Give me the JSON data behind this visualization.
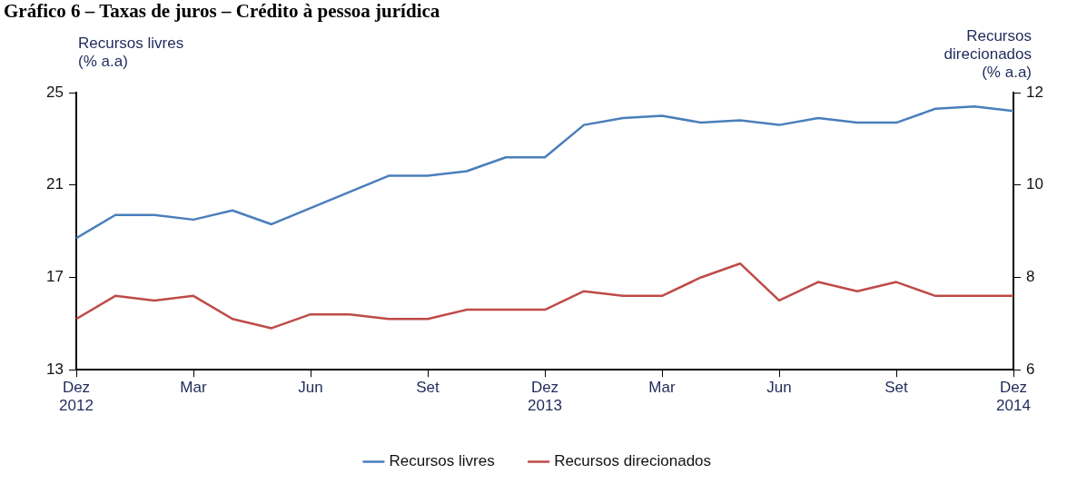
{
  "chart_data": {
    "type": "line",
    "title": "Gráfico 6 – Taxas de juros – Crédito à pessoa jurídica",
    "ylabel": "Recursos livres\n(% a.a)",
    "y2label": "Recursos\ndirecionados\n(% a.a)",
    "categories": [
      "Dez 2012",
      null,
      null,
      "Mar",
      null,
      null,
      "Jun",
      null,
      null,
      "Set",
      null,
      null,
      "Dez 2013",
      null,
      null,
      "Mar",
      null,
      null,
      "Jun",
      null,
      null,
      "Set",
      null,
      null,
      "Dez 2014"
    ],
    "series": [
      {
        "name": "Recursos livres",
        "color": "#4a7ebb",
        "values": [
          18.7,
          19.7,
          19.7,
          19.5,
          19.9,
          19.3,
          20.0,
          20.7,
          21.4,
          21.4,
          21.6,
          22.2,
          22.2,
          23.6,
          23.9,
          24.0,
          23.7,
          23.8,
          23.6,
          23.9,
          23.7,
          23.7,
          24.3,
          24.4,
          24.2
        ]
      },
      {
        "name": "Recursos direcionados",
        "color": "#be4b48",
        "axis": "y2",
        "values": [
          7.1,
          7.6,
          7.5,
          7.6,
          7.1,
          6.9,
          7.2,
          7.2,
          7.1,
          7.1,
          7.3,
          7.3,
          7.3,
          7.7,
          7.6,
          7.6,
          8.0,
          8.3,
          7.5,
          7.9,
          7.7,
          7.9,
          7.6,
          7.6,
          7.6
        ]
      }
    ],
    "ylim": [
      13,
      25
    ],
    "yticks": [
      13,
      17,
      21,
      25
    ],
    "y2lim": [
      6,
      12
    ],
    "y2ticks": [
      6,
      8,
      10,
      12
    ],
    "grid": false,
    "legend": "bottom",
    "marker": "none",
    "line_style": "solid"
  }
}
